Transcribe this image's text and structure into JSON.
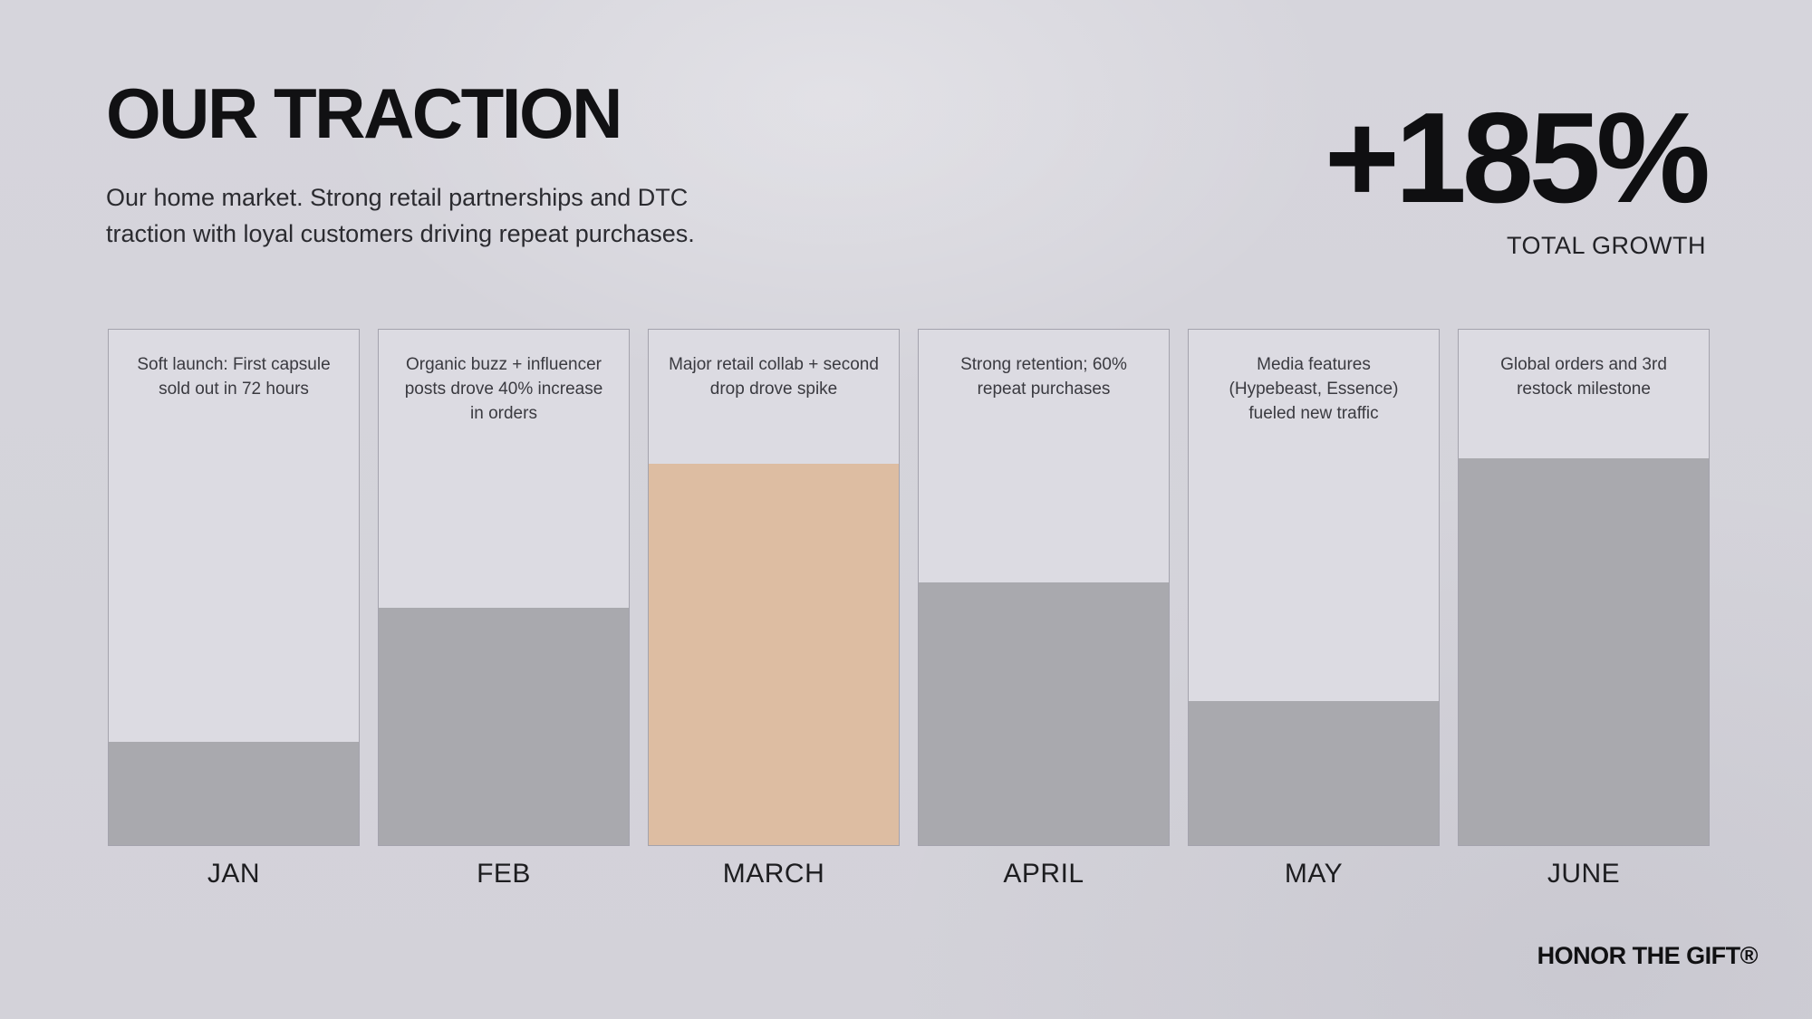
{
  "header": {
    "title": "OUR TRACTION",
    "subtitle_line1": "Our home market. Strong retail partnerships and DTC",
    "subtitle_line2": "traction with loyal customers driving repeat purchases."
  },
  "stat": {
    "value": "+185%",
    "label": "TOTAL GROWTH"
  },
  "footer": {
    "brand": "HONOR THE GIFT®"
  },
  "colors": {
    "background": "#d5d4db",
    "bar_track": "#dcdbe2",
    "bar_default": "#a9a9ae",
    "bar_highlight": "#ddbda2",
    "text_dark": "#151518"
  },
  "chart_data": {
    "type": "bar",
    "title": "OUR TRACTION",
    "categories": [
      "JAN",
      "FEB",
      "MARCH",
      "APRIL",
      "MAY",
      "JUNE"
    ],
    "values": [
      20,
      46,
      74,
      51,
      28,
      75
    ],
    "value_unit": "relative bar height, % of plot area (no numeric axis shown)",
    "ylim": [
      0,
      100
    ],
    "grid": false,
    "legend": false,
    "highlight_index": 2,
    "annotations": [
      "Soft launch: First capsule sold out in 72 hours",
      "Organic buzz + influencer posts drove 40% increase in orders",
      "Major retail collab + second drop drove spike",
      "Strong retention; 60% repeat purchases",
      "Media features (Hypebeast, Essence) fueled new traffic",
      "Global orders and 3rd restock milestone"
    ],
    "summary_stat": "+185% TOTAL GROWTH"
  }
}
